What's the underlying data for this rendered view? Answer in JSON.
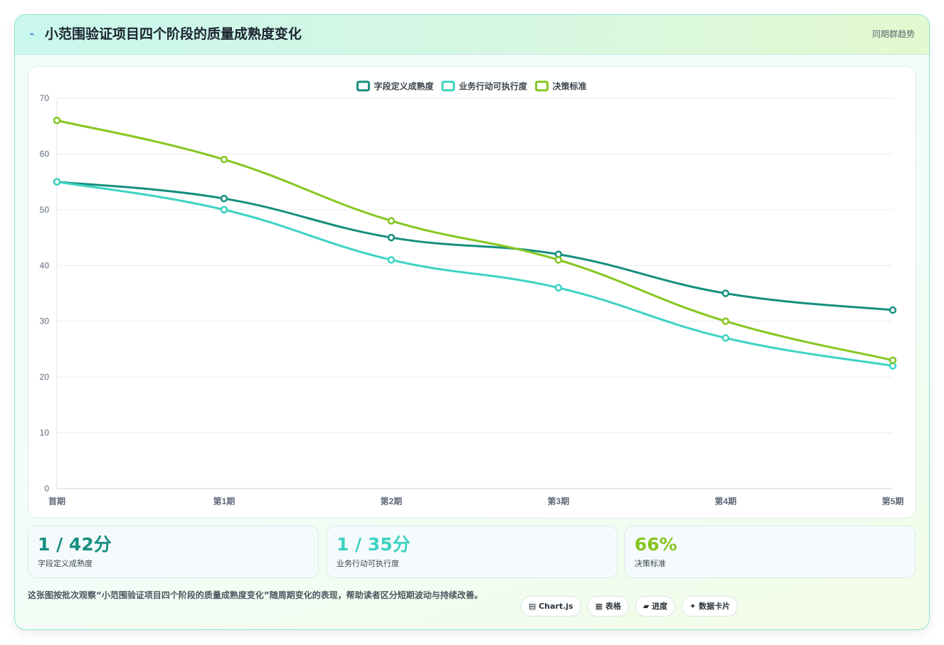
{
  "header": {
    "title_icon": "⌁",
    "title": "小范围验证项目四个阶段的质量成熟度变化",
    "tag": "同期群趋势"
  },
  "colors": {
    "series1": "#158f80",
    "series2": "#3dd3c2",
    "series3": "#86c61f",
    "grid": "#e6ecef",
    "axis_text": "#5f6a7a"
  },
  "chart_data": {
    "type": "line",
    "categories": [
      "首期",
      "第1期",
      "第2期",
      "第3期",
      "第4期",
      "第5期"
    ],
    "series": [
      {
        "name": "字段定义成熟度",
        "values": [
          55,
          52,
          45,
          42,
          35,
          32
        ],
        "color": "#158f80"
      },
      {
        "name": "业务行动可执行度",
        "values": [
          55,
          50,
          41,
          36,
          27,
          22
        ],
        "color": "#3dd3c2"
      },
      {
        "name": "决策标准",
        "values": [
          66,
          59,
          48,
          41,
          30,
          23
        ],
        "color": "#86c61f"
      }
    ],
    "ylim": [
      0,
      70
    ],
    "yticks": [
      0,
      10,
      20,
      30,
      40,
      50,
      60,
      70
    ],
    "grid": true,
    "legend": "top-center"
  },
  "stats": [
    {
      "value": "1 / 42分",
      "label": "字段定义成熟度",
      "color": "#158f80"
    },
    {
      "value": "1 / 35分",
      "label": "业务行动可执行度",
      "color": "#3dd3c2"
    },
    {
      "value": "66%",
      "label": "决策标准",
      "color": "#86c61f"
    }
  ],
  "note": "这张图按批次观察“小范围验证项目四个阶段的质量成熟度变化”随周期变化的表现，帮助读者区分短期波动与持续改善。",
  "tags": [
    {
      "icon": "chart-icon",
      "label": "▤ Chart.js"
    },
    {
      "icon": "table-icon",
      "label": "▦ 表格"
    },
    {
      "icon": "progress-icon",
      "label": "▰ 进度"
    },
    {
      "icon": "card-icon",
      "label": "✦ 数据卡片"
    }
  ]
}
